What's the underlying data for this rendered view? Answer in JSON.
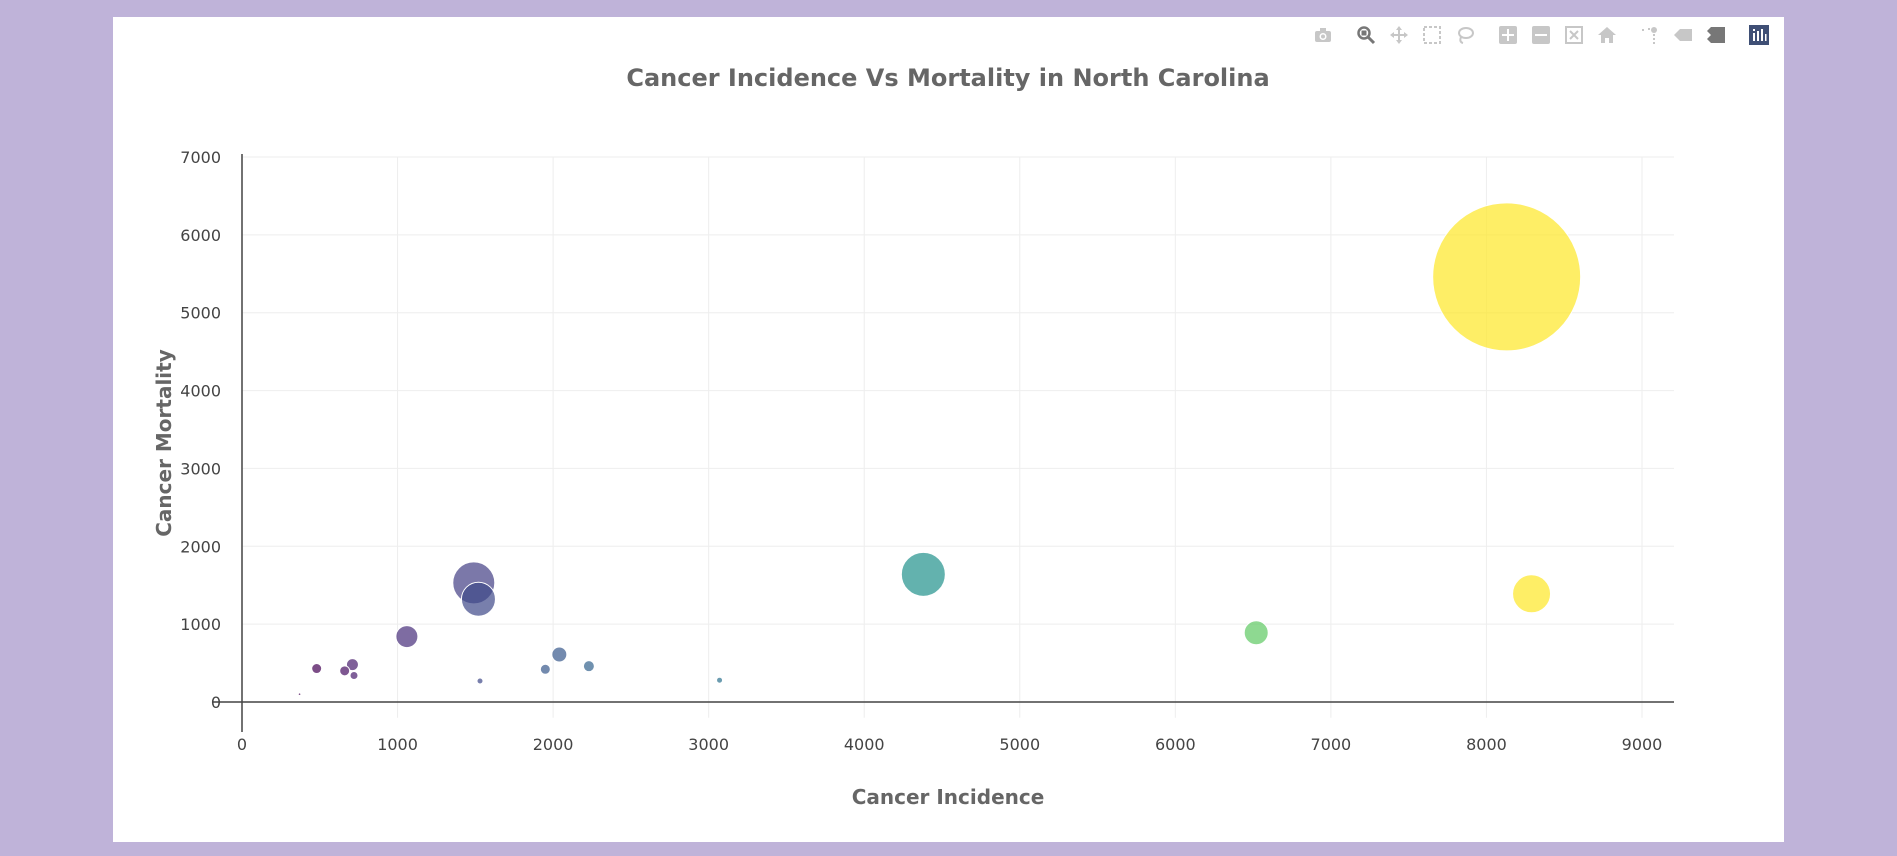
{
  "toolbar": {
    "buttons": [
      {
        "name": "camera-icon",
        "label": "Download plot as a png"
      },
      {
        "name": "zoom-icon",
        "label": "Zoom"
      },
      {
        "name": "pan-icon",
        "label": "Pan"
      },
      {
        "name": "box-select-icon",
        "label": "Box Select"
      },
      {
        "name": "lasso-select-icon",
        "label": "Lasso Select"
      },
      {
        "name": "zoom-in-icon",
        "label": "Zoom in"
      },
      {
        "name": "zoom-out-icon",
        "label": "Zoom out"
      },
      {
        "name": "autoscale-icon",
        "label": "Autoscale"
      },
      {
        "name": "home-icon",
        "label": "Reset axes"
      },
      {
        "name": "spike-lines-icon",
        "label": "Toggle Spike Lines"
      },
      {
        "name": "hover-closest-icon",
        "label": "Show closest data on hover"
      },
      {
        "name": "hover-compare-icon",
        "label": "Compare data on hover"
      },
      {
        "name": "plotly-logo-icon",
        "label": "Produced with Plotly"
      }
    ],
    "active": "zoom-icon"
  },
  "colors": {
    "page_background": "#bfb3d9",
    "plot_background": "#ffffff",
    "grid": "#eeeeee",
    "axis_line": "#444444",
    "text": "#444444",
    "title": "#666666",
    "colorscale": "Viridis"
  },
  "chart_data": {
    "type": "scatter",
    "mode": "markers (bubble)",
    "title": "Cancer Incidence Vs Mortality in North Carolina",
    "xlabel": "Cancer Incidence",
    "ylabel": "Cancer Mortality",
    "xlim": [
      0,
      9200
    ],
    "ylim": [
      -100,
      7000
    ],
    "xticks": [
      0,
      1000,
      2000,
      3000,
      4000,
      5000,
      6000,
      7000,
      8000,
      9000
    ],
    "yticks": [
      0,
      1000,
      2000,
      3000,
      4000,
      5000,
      6000,
      7000
    ],
    "grid": true,
    "legend": "none",
    "marker_opacity": 0.7,
    "points": [
      {
        "x": 370,
        "y": 100,
        "size": 1,
        "color": "#440154"
      },
      {
        "x": 480,
        "y": 430,
        "size": 10,
        "color": "#440154"
      },
      {
        "x": 660,
        "y": 400,
        "size": 10,
        "color": "#471063"
      },
      {
        "x": 710,
        "y": 480,
        "size": 12,
        "color": "#481c6e"
      },
      {
        "x": 720,
        "y": 340,
        "size": 8,
        "color": "#481c6e"
      },
      {
        "x": 1060,
        "y": 840,
        "size": 22,
        "color": "#472d7b"
      },
      {
        "x": 1490,
        "y": 1530,
        "size": 42,
        "color": "#433e85"
      },
      {
        "x": 1520,
        "y": 1320,
        "size": 34,
        "color": "#3e4989"
      },
      {
        "x": 1530,
        "y": 270,
        "size": 6,
        "color": "#3e4989"
      },
      {
        "x": 1950,
        "y": 420,
        "size": 10,
        "color": "#38588c"
      },
      {
        "x": 2040,
        "y": 610,
        "size": 15,
        "color": "#38588c"
      },
      {
        "x": 2230,
        "y": 460,
        "size": 11,
        "color": "#33638d"
      },
      {
        "x": 3070,
        "y": 280,
        "size": 6,
        "color": "#2c728e"
      },
      {
        "x": 4380,
        "y": 1640,
        "size": 44,
        "color": "#21918c"
      },
      {
        "x": 6520,
        "y": 890,
        "size": 24,
        "color": "#5ec962"
      },
      {
        "x": 8130,
        "y": 5460,
        "size": 148,
        "color": "#fde725"
      },
      {
        "x": 8290,
        "y": 1390,
        "size": 38,
        "color": "#fde725"
      }
    ]
  }
}
